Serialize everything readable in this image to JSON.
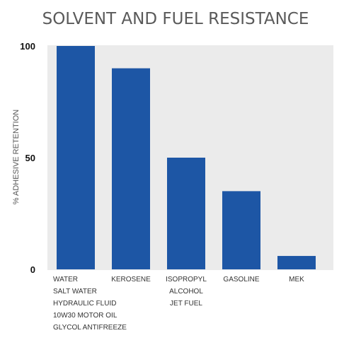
{
  "chart_data": {
    "type": "bar",
    "title": "SOLVENT AND FUEL RESISTANCE",
    "xlabel": "",
    "ylabel": "% ADHESIVE RETENTION",
    "ylim": [
      0,
      100
    ],
    "yticks": [
      "100",
      "50",
      "0"
    ],
    "grid": false,
    "categories": [
      [
        "WATER",
        "SALT WATER",
        "HYDRAULIC FLUID",
        "10W30 MOTOR OIL",
        "GLYCOL ANTIFREEZE"
      ],
      [
        "KEROSENE"
      ],
      [
        "ISOPROPYL",
        "ALCOHOL",
        "JET FUEL"
      ],
      [
        "GASOLINE"
      ],
      [
        "MEK"
      ]
    ],
    "values": [
      100,
      90,
      50,
      35,
      6
    ],
    "colors": {
      "bar": "#1d56a5",
      "plot_bg": "#ebebeb",
      "title": "#5a5a5a"
    }
  }
}
